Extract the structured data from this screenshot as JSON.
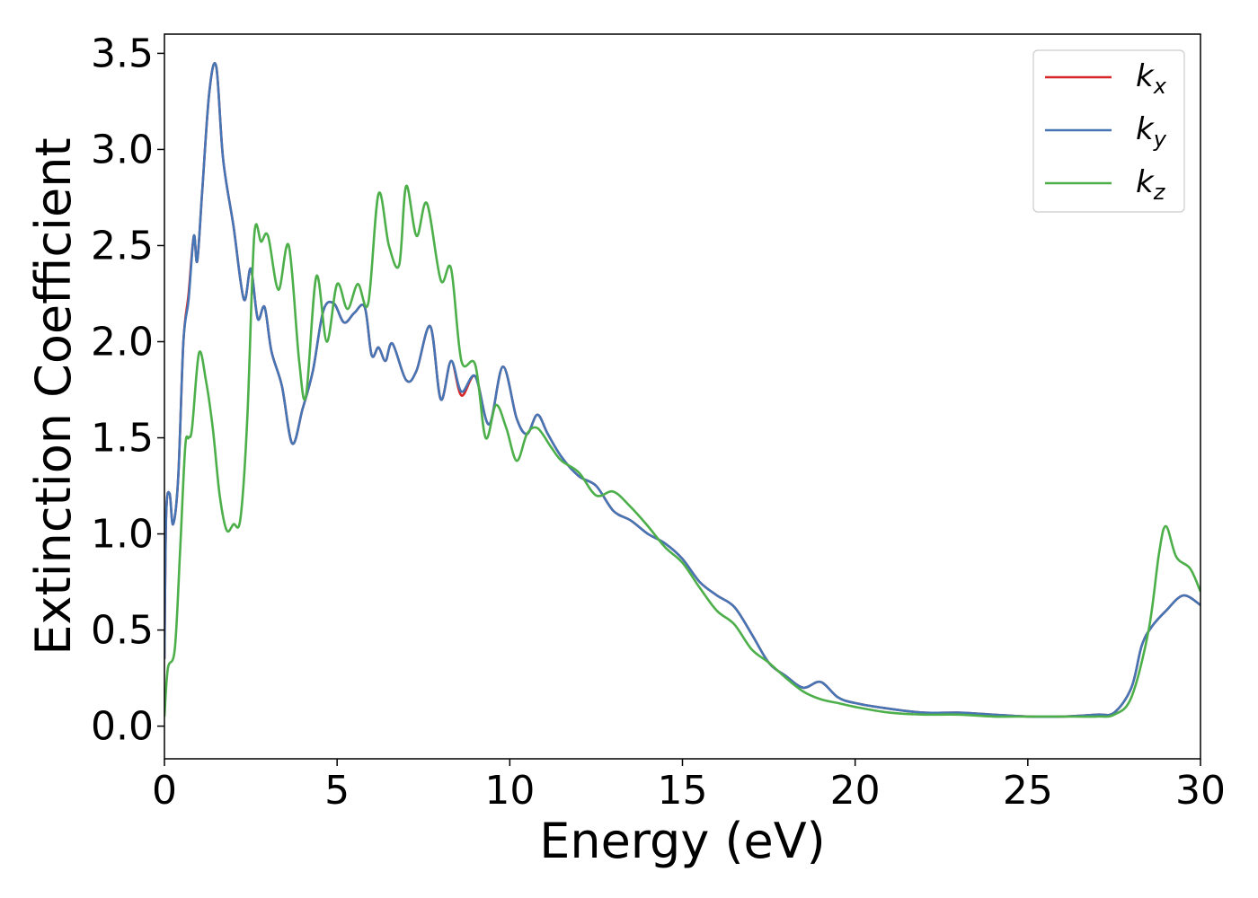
{
  "chart_data": {
    "type": "line",
    "xlabel": "Energy (eV)",
    "ylabel": "Extinction Coefficient",
    "xlim": [
      0,
      30
    ],
    "ylim": [
      -0.17,
      3.6
    ],
    "x_ticks": [
      0,
      5,
      10,
      15,
      20,
      25,
      30
    ],
    "y_ticks": [
      0.0,
      0.5,
      1.0,
      1.5,
      2.0,
      2.5,
      3.0,
      3.5
    ],
    "x_tick_labels": [
      "0",
      "5",
      "10",
      "15",
      "20",
      "25",
      "30"
    ],
    "y_tick_labels": [
      "0.0",
      "0.5",
      "1.0",
      "1.5",
      "2.0",
      "2.5",
      "3.0",
      "3.5"
    ],
    "grid": false,
    "legend_position": "top-right",
    "series": [
      {
        "name": "k_x",
        "legend_base": "k",
        "legend_sub": "x",
        "color": "#d62728",
        "x": [
          0,
          0.05,
          0.15,
          0.25,
          0.4,
          0.55,
          0.7,
          0.85,
          0.95,
          1.1,
          1.3,
          1.5,
          1.7,
          2.0,
          2.3,
          2.5,
          2.7,
          2.9,
          3.1,
          3.4,
          3.7,
          4.0,
          4.3,
          4.6,
          4.9,
          5.2,
          5.5,
          5.8,
          6.0,
          6.2,
          6.4,
          6.6,
          7.0,
          7.3,
          7.7,
          8.0,
          8.3,
          8.6,
          9.0,
          9.4,
          9.8,
          10.2,
          10.5,
          10.8,
          11.1,
          11.5,
          12.0,
          12.5,
          13.0,
          13.5,
          14.0,
          14.5,
          15.0,
          15.5,
          16.0,
          16.5,
          17.0,
          17.5,
          18.0,
          18.5,
          19.0,
          19.5,
          20.0,
          21.0,
          22.0,
          23.0,
          24.0,
          25.0,
          26.0,
          27.0,
          27.5,
          28.0,
          28.3,
          28.6,
          29.0,
          29.5,
          30.0
        ],
        "y": [
          0.35,
          1.1,
          1.21,
          1.05,
          1.3,
          2.0,
          2.25,
          2.55,
          2.42,
          2.8,
          3.3,
          3.43,
          2.95,
          2.6,
          2.22,
          2.38,
          2.12,
          2.18,
          1.95,
          1.77,
          1.47,
          1.65,
          1.85,
          2.16,
          2.2,
          2.1,
          2.15,
          2.18,
          1.93,
          1.97,
          1.9,
          1.99,
          1.8,
          1.85,
          2.08,
          1.7,
          1.9,
          1.72,
          1.82,
          1.57,
          1.87,
          1.6,
          1.52,
          1.62,
          1.52,
          1.4,
          1.3,
          1.25,
          1.12,
          1.07,
          1.0,
          0.95,
          0.87,
          0.75,
          0.68,
          0.62,
          0.48,
          0.33,
          0.26,
          0.2,
          0.23,
          0.15,
          0.12,
          0.09,
          0.07,
          0.07,
          0.06,
          0.05,
          0.05,
          0.06,
          0.07,
          0.2,
          0.42,
          0.52,
          0.6,
          0.68,
          0.63
        ]
      },
      {
        "name": "k_y",
        "legend_base": "k",
        "legend_sub": "y",
        "color": "#4575b4",
        "x": [
          0,
          0.05,
          0.15,
          0.25,
          0.4,
          0.55,
          0.7,
          0.85,
          0.95,
          1.1,
          1.3,
          1.5,
          1.7,
          2.0,
          2.3,
          2.5,
          2.7,
          2.9,
          3.1,
          3.4,
          3.7,
          4.0,
          4.3,
          4.6,
          4.9,
          5.2,
          5.5,
          5.8,
          6.0,
          6.2,
          6.4,
          6.6,
          7.0,
          7.3,
          7.7,
          8.0,
          8.3,
          8.6,
          9.0,
          9.4,
          9.8,
          10.2,
          10.5,
          10.8,
          11.1,
          11.5,
          12.0,
          12.5,
          13.0,
          13.5,
          14.0,
          14.5,
          15.0,
          15.5,
          16.0,
          16.5,
          17.0,
          17.5,
          18.0,
          18.5,
          19.0,
          19.5,
          20.0,
          21.0,
          22.0,
          23.0,
          24.0,
          25.0,
          26.0,
          27.0,
          27.5,
          28.0,
          28.3,
          28.6,
          29.0,
          29.5,
          30.0
        ],
        "y": [
          0.35,
          1.1,
          1.21,
          1.05,
          1.3,
          2.0,
          2.22,
          2.55,
          2.42,
          2.8,
          3.3,
          3.43,
          2.95,
          2.6,
          2.22,
          2.38,
          2.12,
          2.18,
          1.95,
          1.77,
          1.47,
          1.65,
          1.85,
          2.16,
          2.2,
          2.1,
          2.15,
          2.18,
          1.93,
          1.97,
          1.9,
          1.99,
          1.8,
          1.85,
          2.08,
          1.7,
          1.9,
          1.74,
          1.82,
          1.57,
          1.87,
          1.6,
          1.52,
          1.62,
          1.52,
          1.4,
          1.3,
          1.25,
          1.12,
          1.07,
          1.0,
          0.95,
          0.87,
          0.75,
          0.68,
          0.62,
          0.48,
          0.33,
          0.26,
          0.2,
          0.23,
          0.15,
          0.12,
          0.09,
          0.07,
          0.07,
          0.06,
          0.05,
          0.05,
          0.06,
          0.07,
          0.2,
          0.42,
          0.52,
          0.6,
          0.68,
          0.63
        ]
      },
      {
        "name": "k_z",
        "legend_base": "k",
        "legend_sub": "z",
        "color": "#4daf4a",
        "x": [
          0,
          0.1,
          0.3,
          0.45,
          0.6,
          0.7,
          0.8,
          1.0,
          1.2,
          1.4,
          1.6,
          1.8,
          2.0,
          2.2,
          2.4,
          2.6,
          2.8,
          3.0,
          3.3,
          3.6,
          3.9,
          4.1,
          4.4,
          4.7,
          5.0,
          5.3,
          5.6,
          5.9,
          6.2,
          6.5,
          6.8,
          7.0,
          7.3,
          7.6,
          8.0,
          8.3,
          8.6,
          9.0,
          9.3,
          9.6,
          9.9,
          10.2,
          10.5,
          10.8,
          11.2,
          11.5,
          12.0,
          12.5,
          13.0,
          13.5,
          14.0,
          14.5,
          15.0,
          15.5,
          16.0,
          16.5,
          17.0,
          17.5,
          18.0,
          18.5,
          19.0,
          19.5,
          20.0,
          21.0,
          22.0,
          23.0,
          24.0,
          25.0,
          26.0,
          27.0,
          27.5,
          28.0,
          28.5,
          28.8,
          29.0,
          29.3,
          29.7,
          30.0
        ],
        "y": [
          0.05,
          0.3,
          0.4,
          0.9,
          1.45,
          1.5,
          1.55,
          1.94,
          1.8,
          1.55,
          1.2,
          1.02,
          1.05,
          1.08,
          1.6,
          2.55,
          2.52,
          2.55,
          2.27,
          2.5,
          1.9,
          1.72,
          2.34,
          2.0,
          2.3,
          2.17,
          2.3,
          2.2,
          2.77,
          2.5,
          2.4,
          2.81,
          2.55,
          2.72,
          2.32,
          2.38,
          1.9,
          1.88,
          1.5,
          1.67,
          1.55,
          1.38,
          1.52,
          1.55,
          1.45,
          1.38,
          1.32,
          1.2,
          1.22,
          1.14,
          1.04,
          0.93,
          0.85,
          0.72,
          0.6,
          0.53,
          0.4,
          0.33,
          0.25,
          0.18,
          0.14,
          0.12,
          0.1,
          0.07,
          0.06,
          0.06,
          0.05,
          0.05,
          0.05,
          0.05,
          0.06,
          0.15,
          0.5,
          0.9,
          1.04,
          0.88,
          0.82,
          0.7
        ]
      }
    ]
  }
}
